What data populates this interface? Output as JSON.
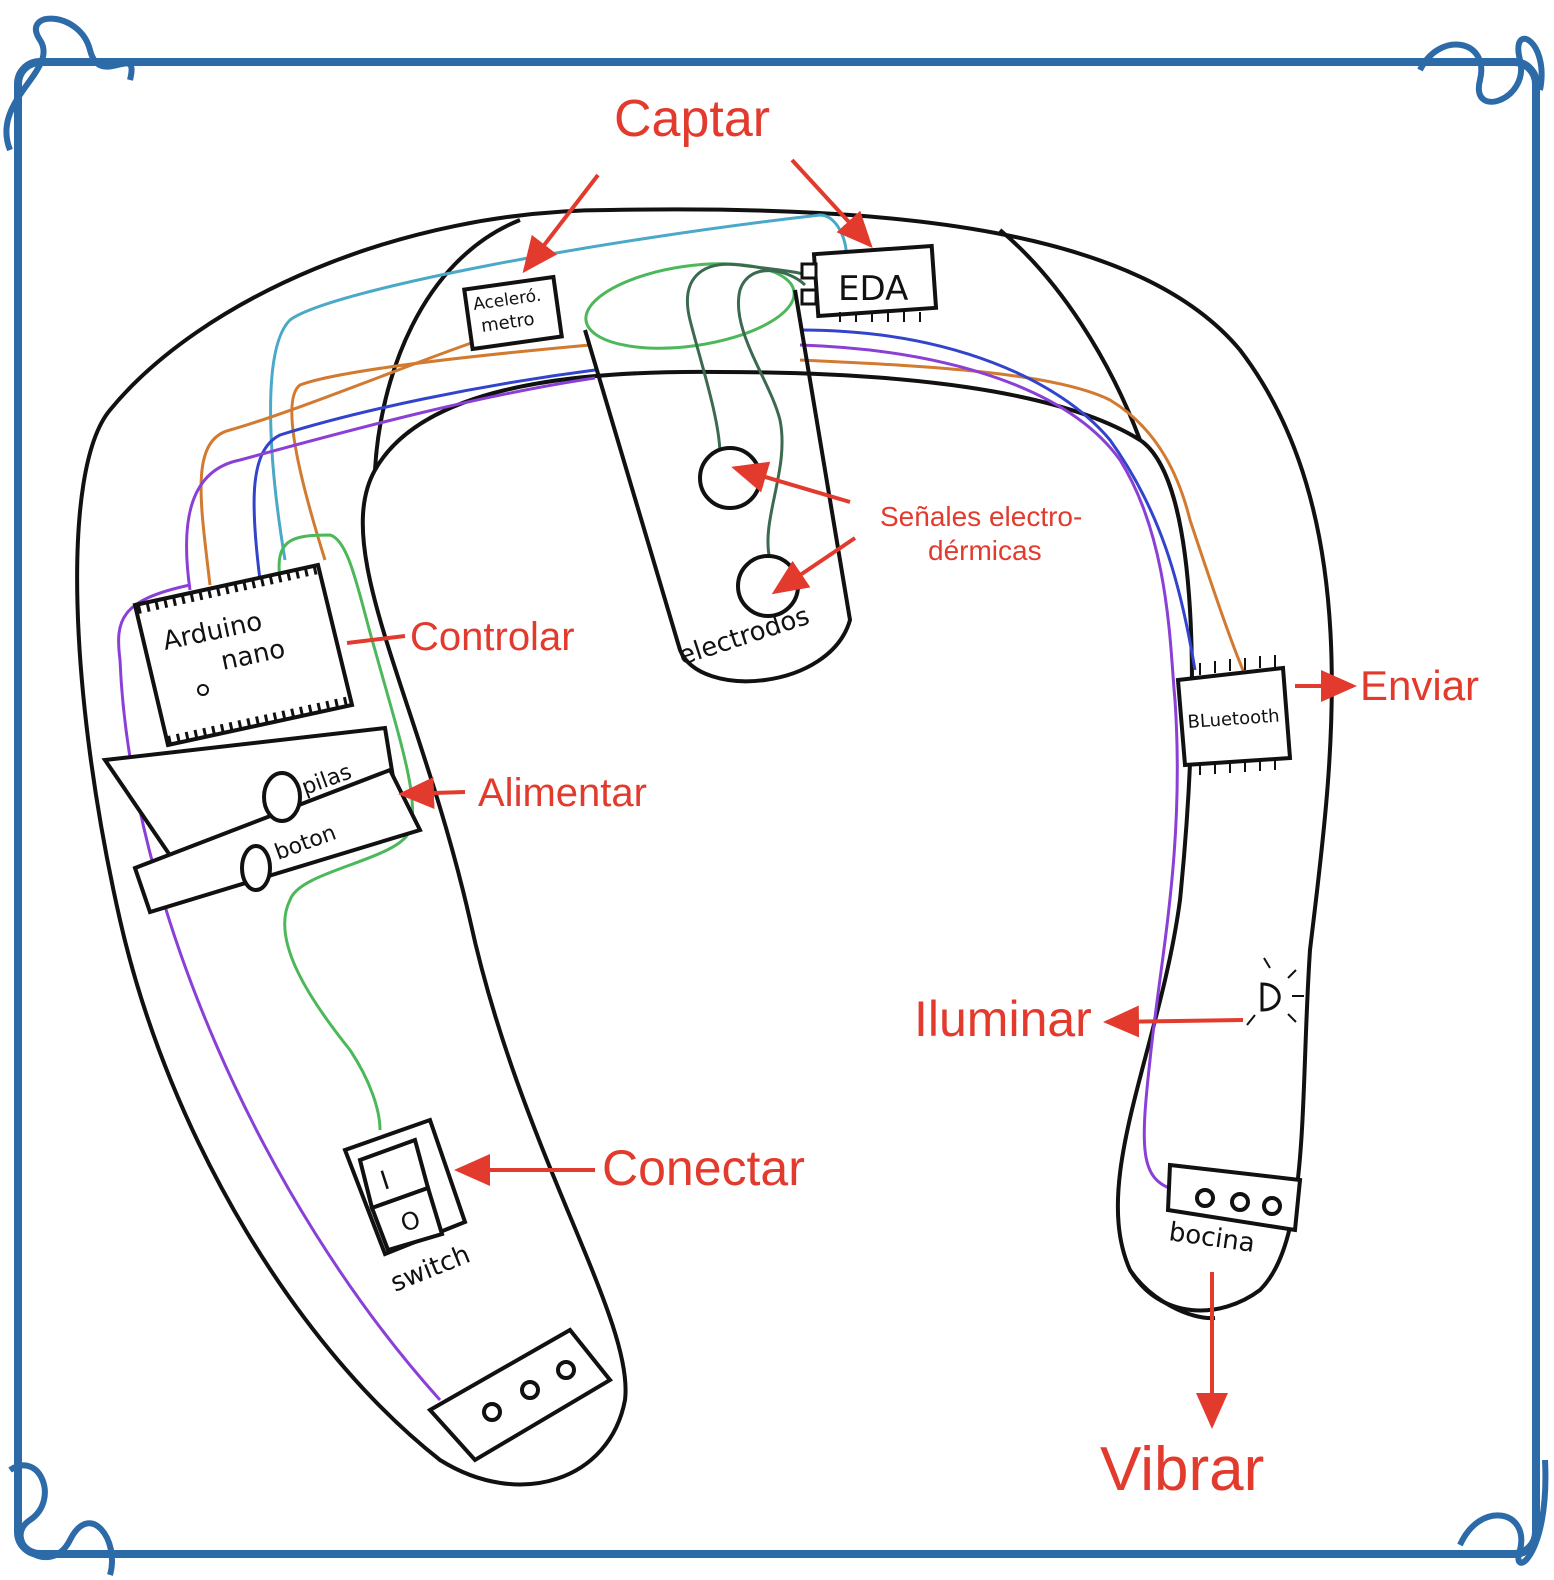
{
  "colors": {
    "frame": "#2d6aa8",
    "label": "#e23b2e",
    "outline": "#111111",
    "wire_cyan": "#4aa8c8",
    "wire_orange": "#d27a30",
    "wire_blue": "#3344cc",
    "wire_purple": "#8a3fd6",
    "wire_green": "#4cb85a",
    "wire_darkgreen": "#3c6a50"
  },
  "labels": {
    "captar": "Captar",
    "controlar": "Controlar",
    "alimentar": "Alimentar",
    "conectar": "Conectar",
    "enviar": "Enviar",
    "iluminar": "Iluminar",
    "vibrar": "Vibrar",
    "senales_line1": "Señales electro-",
    "senales_line2": "dérmicas"
  },
  "components": {
    "acelerometro_line1": "Aceleró.",
    "acelerometro_line2": "metro",
    "eda": "EDA",
    "arduino_line1": "Arduino",
    "arduino_line2": "nano",
    "pilas": "pilas",
    "boton": "boton",
    "electrodos": "electrodos",
    "bluetooth": "BLuetooth",
    "switch": "switch",
    "switch_on": "I",
    "switch_off": "O",
    "bocina": "bocina"
  }
}
